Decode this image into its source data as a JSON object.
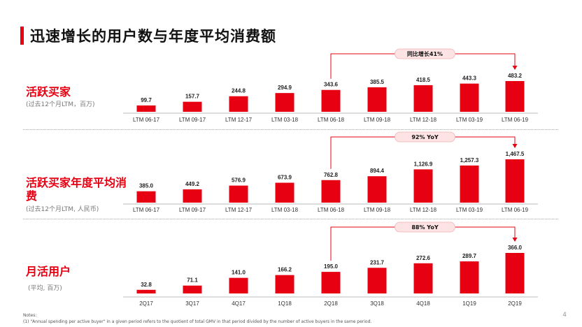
{
  "title": "迅速增长的用户数与年度平均消费额",
  "colors": {
    "accent": "#e60012",
    "bar": "#e60012",
    "callout_bg": "#fde3e3"
  },
  "panels": [
    {
      "label": "活跃买家",
      "sub": "(过去12个月LTM，百万)",
      "callout": "同比增长41%"
    },
    {
      "label": "活跃买家年度平均消费",
      "sub": "(过去12个月LTM, 人民币)",
      "callout": "92% YoY"
    },
    {
      "label": "月活用户",
      "sub": "(平均, 百万)",
      "callout": "88% YoY"
    }
  ],
  "chart_data": [
    {
      "type": "bar",
      "categories": [
        "LTM 06-17",
        "LTM 09-17",
        "LTM 12-17",
        "LTM 03-18",
        "LTM 06-18",
        "LTM 09-18",
        "LTM 12-18",
        "LTM 03-19",
        "LTM 06-19"
      ],
      "values": [
        99.7,
        157.7,
        244.8,
        294.9,
        343.6,
        385.5,
        418.5,
        443.3,
        483.2
      ],
      "labels": [
        "99.7",
        "157.7",
        "244.8",
        "294.9",
        "343.6",
        "385.5",
        "418.5",
        "443.3",
        "483.2"
      ],
      "annotation": {
        "text": "同比增长41%",
        "from": "LTM 06-18",
        "to": "LTM 06-19"
      },
      "ylim": [
        0,
        483.2
      ]
    },
    {
      "type": "bar",
      "categories": [
        "LTM 06-17",
        "LTM 09-17",
        "LTM 12-17",
        "LTM 03-18",
        "LTM 06-18",
        "LTM 09-18",
        "LTM 12-18",
        "LTM 03-19",
        "LTM 06-19"
      ],
      "values": [
        385.0,
        449.2,
        576.9,
        673.9,
        762.8,
        894.4,
        1126.9,
        1257.3,
        1467.5
      ],
      "labels": [
        "385.0",
        "449.2",
        "576.9",
        "673.9",
        "762.8",
        "894.4",
        "1,126.9",
        "1,257.3",
        "1,467.5"
      ],
      "annotation": {
        "text": "92% YoY",
        "from": "LTM 06-18",
        "to": "LTM 06-19"
      },
      "ylim": [
        0,
        1467.5
      ]
    },
    {
      "type": "bar",
      "categories": [
        "2Q17",
        "3Q17",
        "4Q17",
        "1Q18",
        "2Q18",
        "3Q18",
        "4Q18",
        "1Q19",
        "2Q19"
      ],
      "values": [
        32.8,
        71.1,
        141.0,
        166.2,
        195.0,
        231.7,
        272.6,
        289.7,
        366.0
      ],
      "labels": [
        "32.8",
        "71.1",
        "141.0",
        "166.2",
        "195.0",
        "231.7",
        "272.6",
        "289.7",
        "366.0"
      ],
      "annotation": {
        "text": "88% YoY",
        "from": "2Q18",
        "to": "2Q19"
      },
      "ylim": [
        0,
        366.0
      ]
    }
  ],
  "notes": {
    "heading": "Notes:",
    "line1": "(1)    \"Annual spending per active buyer\" in a given period refers to the quotient of total GMV in that period divided by the number of active buyers in the same period."
  },
  "page_number": "4"
}
